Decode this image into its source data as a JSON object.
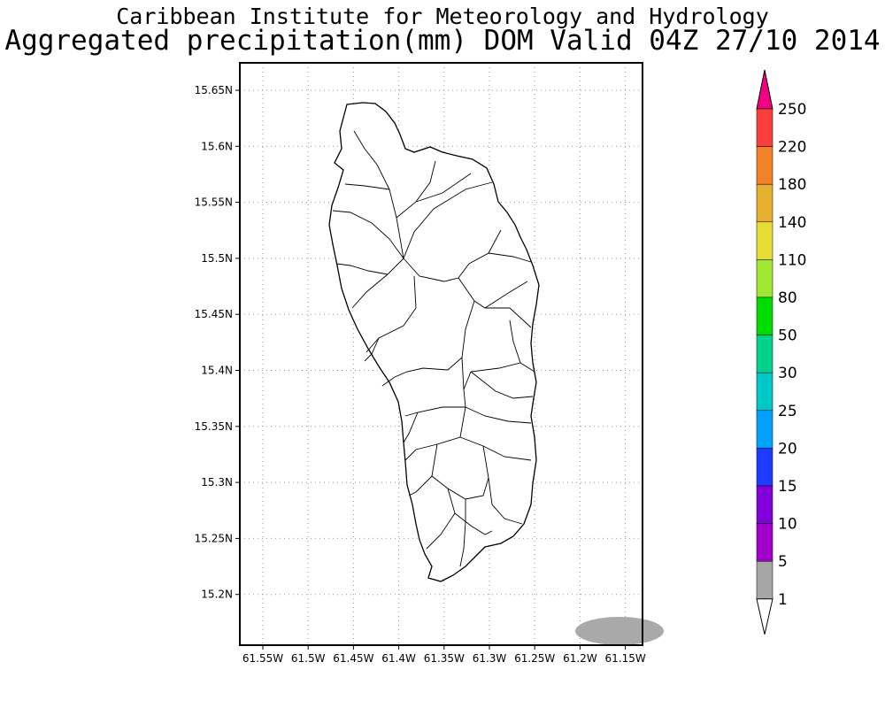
{
  "title": {
    "line1": "Caribbean Institute for Meteorology and Hydrology",
    "line2": "Aggregated precipitation(mm) DOM Valid 04Z 27/10 2014"
  },
  "map": {
    "lon_ticks": [
      "61.55W",
      "61.5W",
      "61.45W",
      "61.4W",
      "61.35W",
      "61.3W",
      "61.25W",
      "61.2W",
      "61.15W"
    ],
    "lat_ticks": [
      "15.65N",
      "15.6N",
      "15.55N",
      "15.5N",
      "15.45N",
      "15.4N",
      "15.35N",
      "15.3N",
      "15.25N",
      "15.2N"
    ],
    "lon_range": [
      -61.58,
      -61.14
    ],
    "lat_range": [
      15.155,
      15.675
    ],
    "grid": true,
    "land_fill": "#ffffff",
    "outline_color": "#000000",
    "precip_area_color": "#a9a9a9"
  },
  "colorbar": {
    "labels": [
      "1",
      "5",
      "10",
      "15",
      "20",
      "25",
      "30",
      "50",
      "80",
      "110",
      "140",
      "180",
      "220",
      "250"
    ],
    "colors": [
      "#a6a6a6",
      "#a000c8",
      "#8200dc",
      "#1e3cff",
      "#00a0ff",
      "#00c8c8",
      "#00d28c",
      "#00dc00",
      "#a0e632",
      "#e6dc32",
      "#e6af2d",
      "#f08228",
      "#fa3c3c",
      "#f00082"
    ],
    "under_color": "#ffffff"
  }
}
